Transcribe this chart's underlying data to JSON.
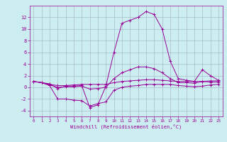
{
  "xlabel": "Windchill (Refroidissement éolien,°C)",
  "bg_color": "#cceef0",
  "grid_color": "#aabbcc",
  "line_color": "#990099",
  "x": [
    0,
    1,
    2,
    3,
    4,
    5,
    6,
    7,
    8,
    9,
    10,
    11,
    12,
    13,
    14,
    15,
    16,
    17,
    18,
    19,
    20,
    21,
    22,
    23
  ],
  "line1": [
    1.0,
    0.8,
    0.6,
    -0.2,
    0.2,
    0.2,
    0.3,
    -3.5,
    -3.0,
    0.2,
    6.0,
    11.0,
    11.5,
    12.0,
    13.0,
    12.5,
    10.0,
    4.5,
    1.5,
    1.2,
    1.0,
    3.0,
    2.0,
    1.2
  ],
  "line2": [
    1.0,
    0.8,
    0.5,
    0.3,
    0.3,
    0.4,
    0.5,
    0.5,
    0.5,
    0.5,
    0.8,
    1.0,
    1.1,
    1.2,
    1.3,
    1.3,
    1.2,
    1.1,
    1.0,
    1.0,
    1.0,
    1.0,
    1.1,
    1.1
  ],
  "line3": [
    1.0,
    0.8,
    0.3,
    -2.0,
    -2.0,
    -2.2,
    -2.3,
    -3.2,
    -2.8,
    -2.5,
    -0.5,
    0.0,
    0.2,
    0.3,
    0.5,
    0.5,
    0.5,
    0.5,
    0.3,
    0.2,
    0.1,
    0.2,
    0.4,
    0.5
  ],
  "line4": [
    1.0,
    0.8,
    0.4,
    0.0,
    0.1,
    0.1,
    0.2,
    -0.3,
    -0.2,
    0.0,
    1.5,
    2.5,
    3.0,
    3.5,
    3.5,
    3.2,
    2.5,
    1.5,
    0.8,
    0.8,
    0.7,
    1.0,
    0.9,
    0.9
  ],
  "ylim": [
    -5,
    14
  ],
  "yticks": [
    -4,
    -2,
    0,
    2,
    4,
    6,
    8,
    10,
    12
  ],
  "xlim": [
    -0.5,
    23.5
  ],
  "figwidth": 3.2,
  "figheight": 2.0,
  "dpi": 100
}
